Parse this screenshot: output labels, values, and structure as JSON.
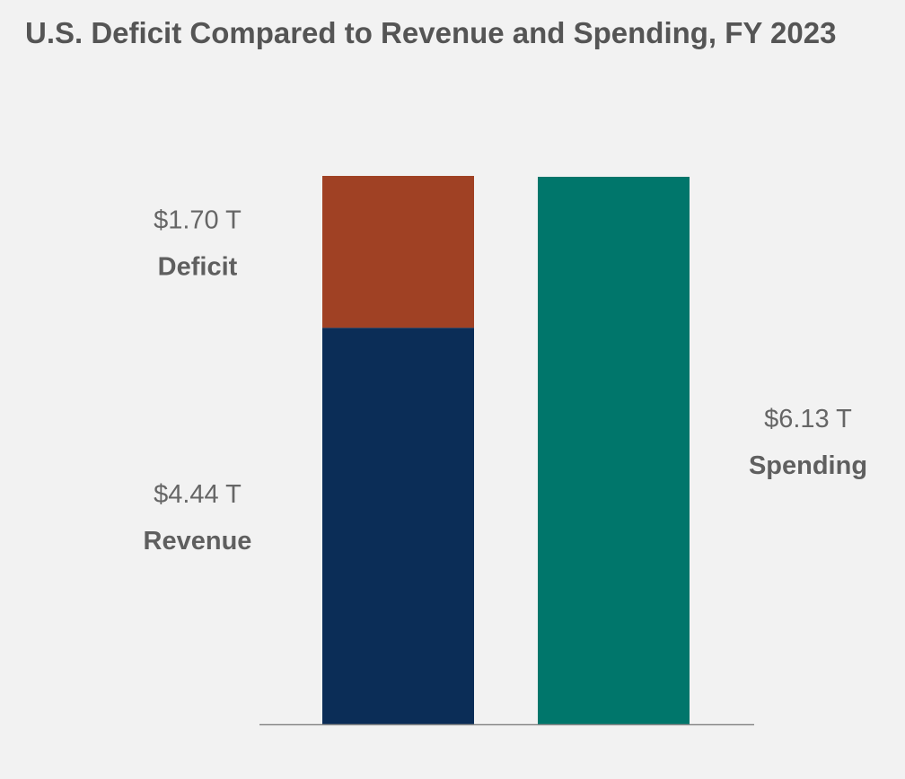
{
  "chart_data": {
    "type": "bar",
    "title": "U.S. Deficit Compared to Revenue and Spending, FY 2023",
    "unit": "trillions of dollars",
    "ylim": [
      0,
      6.13
    ],
    "grid": false,
    "bars": [
      {
        "name": "revenue-deficit-stack",
        "segments": [
          {
            "name": "Revenue",
            "value": 4.44,
            "label": "$4.44 T",
            "color": "#0b2d57"
          },
          {
            "name": "Deficit",
            "value": 1.7,
            "label": "$1.70 T",
            "color": "#a04124"
          }
        ],
        "label_side": "left"
      },
      {
        "name": "spending",
        "segments": [
          {
            "name": "Spending",
            "value": 6.13,
            "label": "$6.13 T",
            "color": "#00766b"
          }
        ],
        "label_side": "right"
      }
    ],
    "axis_color": "#888888"
  }
}
